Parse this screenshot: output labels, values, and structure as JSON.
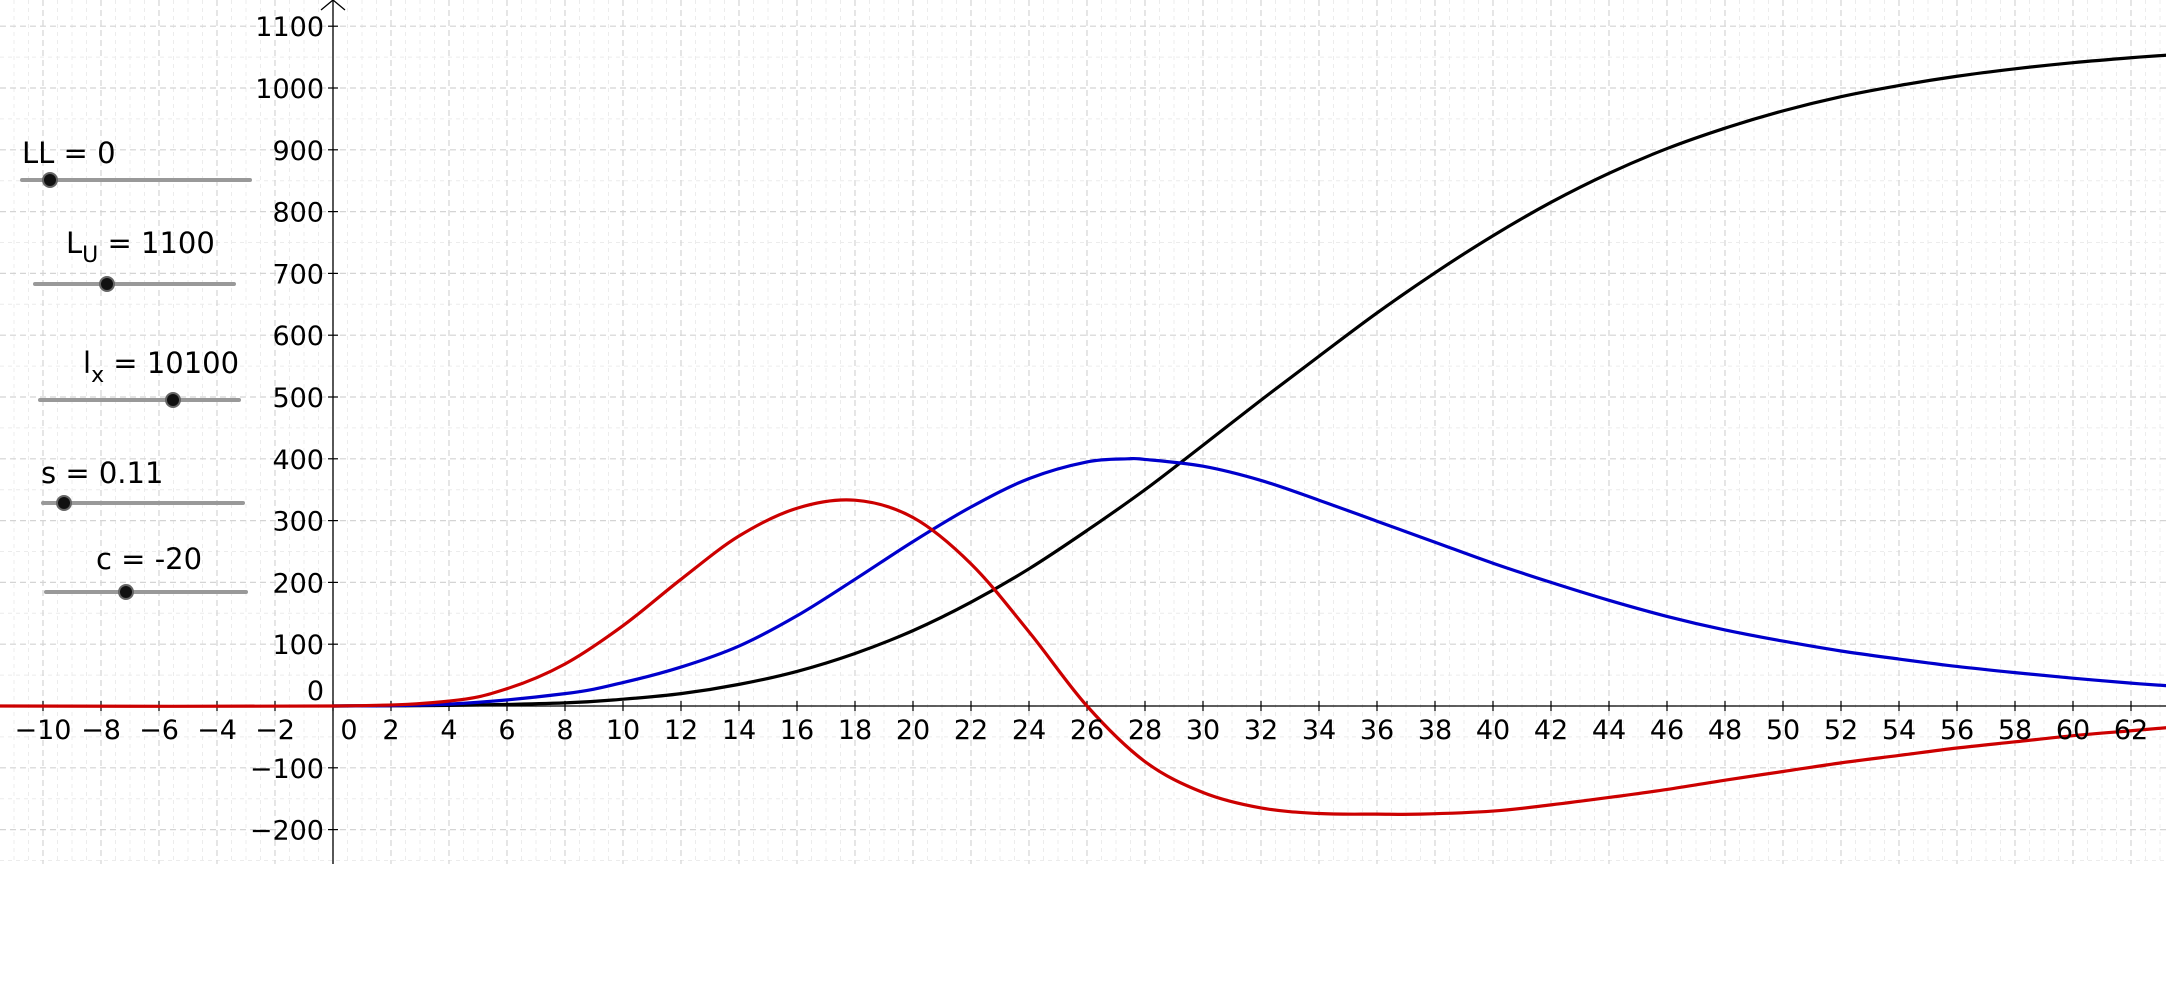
{
  "sliders": [
    {
      "name": "LL",
      "subscript": "",
      "value": "0",
      "track": [
        20,
        252
      ],
      "knob": 50,
      "y": 180,
      "labelLeft": 22,
      "labelTop": 136
    },
    {
      "name": "L",
      "subscript": "U",
      "value": "1100",
      "track": [
        33,
        236
      ],
      "knob": 107,
      "y": 284,
      "labelLeft": 66,
      "labelTop": 226
    },
    {
      "name": "l",
      "subscript": "x",
      "value": "10100",
      "track": [
        38,
        241
      ],
      "knob": 173,
      "y": 400,
      "labelLeft": 83,
      "labelTop": 346
    },
    {
      "name": "s",
      "subscript": "",
      "value": "0.11",
      "track": [
        41,
        245
      ],
      "knob": 64,
      "y": 503,
      "labelLeft": 41,
      "labelTop": 456
    },
    {
      "name": "c",
      "subscript": "",
      "value": "-20",
      "track": [
        44,
        248
      ],
      "knob": 126,
      "y": 592,
      "labelLeft": 96,
      "labelTop": 542
    }
  ],
  "chart_data": {
    "type": "line",
    "title": "",
    "xlabel": "",
    "ylabel": "",
    "xlim": [
      -11.5,
      63.5
    ],
    "ylim": [
      -260,
      1130
    ],
    "x_ticks": [
      -10,
      -8,
      -6,
      -4,
      -2,
      0,
      2,
      4,
      6,
      8,
      10,
      12,
      14,
      16,
      18,
      20,
      22,
      24,
      26,
      28,
      30,
      32,
      34,
      36,
      38,
      40,
      42,
      44,
      46,
      48,
      50,
      52,
      54,
      56,
      58,
      60,
      62
    ],
    "y_ticks": [
      -200,
      -100,
      0,
      100,
      200,
      300,
      400,
      500,
      600,
      700,
      800,
      900,
      1000,
      1100
    ],
    "grid": true,
    "series": [
      {
        "color": "#000000",
        "x": [
          0,
          4,
          8,
          10,
          12,
          14,
          16,
          18,
          20,
          22,
          24,
          26,
          28,
          30,
          32,
          34,
          36,
          38,
          40,
          42,
          44,
          46,
          48,
          50,
          52,
          54,
          56,
          58,
          60,
          62,
          63.5
        ],
        "y": [
          0,
          1,
          5,
          11,
          20,
          35,
          56,
          85,
          122,
          168,
          222,
          284,
          350,
          422,
          495,
          566,
          636,
          701,
          761,
          815,
          862,
          902,
          935,
          963,
          986,
          1004,
          1019,
          1031,
          1041,
          1049,
          1054
        ]
      },
      {
        "color": "#0000cc",
        "x": [
          0,
          4,
          8,
          10,
          12,
          14,
          16,
          18,
          20,
          22,
          24,
          26,
          27.4,
          28,
          30,
          32,
          34,
          36,
          38,
          40,
          42,
          44,
          46,
          48,
          50,
          52,
          54,
          56,
          58,
          60,
          62,
          63.5
        ],
        "y": [
          0,
          3,
          20,
          38,
          63,
          97,
          146,
          205,
          266,
          322,
          368,
          395,
          400,
          399,
          388,
          365,
          333,
          299,
          265,
          231,
          200,
          171,
          145,
          123,
          105,
          89,
          76,
          64,
          54,
          45,
          37,
          32
        ]
      },
      {
        "color": "#cc0000",
        "x": [
          -11.5,
          0,
          4,
          6,
          8,
          10,
          12,
          14,
          16,
          18,
          20,
          22,
          24,
          26,
          28,
          30,
          32,
          34,
          36,
          37.5,
          40,
          42,
          44,
          46,
          48,
          50,
          52,
          54,
          56,
          58,
          60,
          62,
          63.5
        ],
        "y": [
          0,
          0,
          8,
          28,
          68,
          130,
          205,
          275,
          320,
          333,
          305,
          230,
          120,
          0,
          -90,
          -140,
          -165,
          -174,
          -175,
          -175,
          -170,
          -160,
          -148,
          -135,
          -120,
          -106,
          -92,
          -80,
          -68,
          -58,
          -48,
          -40,
          -34
        ]
      }
    ]
  }
}
